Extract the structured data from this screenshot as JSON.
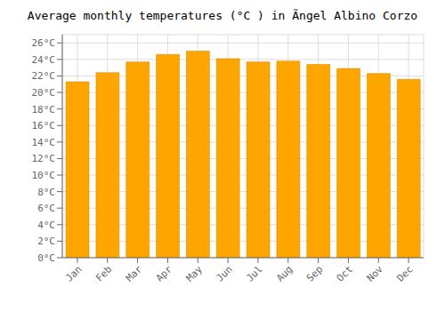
{
  "chart_data": {
    "type": "bar",
    "title": "Average monthly temperatures (°C ) in Ãngel Albino Corzo",
    "categories": [
      "Jan",
      "Feb",
      "Mar",
      "Apr",
      "May",
      "Jun",
      "Jul",
      "Aug",
      "Sep",
      "Oct",
      "Nov",
      "Dec"
    ],
    "values": [
      21.3,
      22.4,
      23.7,
      24.6,
      25.0,
      24.1,
      23.7,
      23.8,
      23.4,
      22.9,
      22.3,
      21.6
    ],
    "color": "#FFA500",
    "ylim": [
      0,
      27
    ],
    "yticks": [
      {
        "value": 0,
        "label": "0°C"
      },
      {
        "value": 2,
        "label": "2°C"
      },
      {
        "value": 4,
        "label": "4°C"
      },
      {
        "value": 6,
        "label": "6°C"
      },
      {
        "value": 8,
        "label": "8°C"
      },
      {
        "value": 10,
        "label": "10°C"
      },
      {
        "value": 12,
        "label": "12°C"
      },
      {
        "value": 14,
        "label": "14°C"
      },
      {
        "value": 16,
        "label": "16°C"
      },
      {
        "value": 18,
        "label": "18°C"
      },
      {
        "value": 20,
        "label": "20°C"
      },
      {
        "value": 22,
        "label": "22°C"
      },
      {
        "value": 24,
        "label": "24°C"
      },
      {
        "value": 26,
        "label": "26°C"
      }
    ],
    "grid": true
  }
}
